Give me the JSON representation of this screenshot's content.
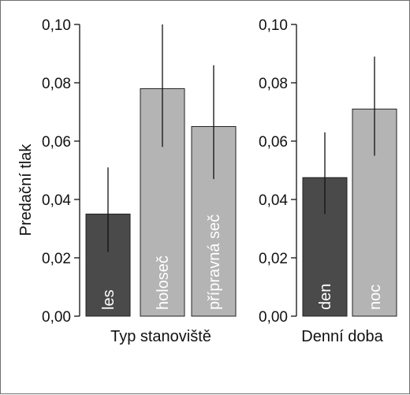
{
  "chart_data": [
    {
      "type": "bar",
      "xlabel": "Typ stanoviště",
      "ylabel": "Predační tlak",
      "ylim": [
        0,
        0.1
      ],
      "yticks": [
        "0,00",
        "0,02",
        "0,04",
        "0,06",
        "0,08",
        "0,10"
      ],
      "categories": [
        "les",
        "holoseč",
        "přípravná seč"
      ],
      "values": [
        0.035,
        0.078,
        0.065
      ],
      "error_low": [
        0.022,
        0.058,
        0.047
      ],
      "error_high": [
        0.051,
        0.1,
        0.086
      ],
      "colors": [
        "#4a4a4a",
        "#b4b4b4",
        "#b4b4b4"
      ]
    },
    {
      "type": "bar",
      "xlabel": "Denní doba",
      "ylim": [
        0,
        0.1
      ],
      "yticks": [
        "0,00",
        "0,02",
        "0,04",
        "0,06",
        "0,08",
        "0,10"
      ],
      "categories": [
        "den",
        "noc"
      ],
      "values": [
        0.0475,
        0.071
      ],
      "error_low": [
        0.035,
        0.055
      ],
      "error_high": [
        0.063,
        0.089
      ],
      "colors": [
        "#4a4a4a",
        "#b4b4b4"
      ]
    }
  ]
}
